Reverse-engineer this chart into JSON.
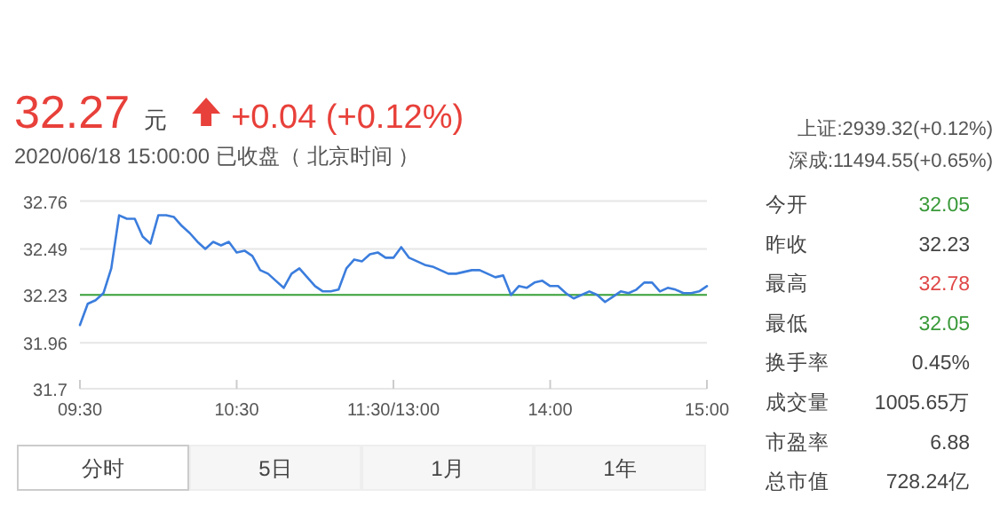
{
  "chart_data": [
    {
      "type": "line",
      "title": "32.27",
      "subtitle": "2020/06/18 15:00:00  已收盘（ 北京时间 ）",
      "annotations": [
        "元",
        "+0.04 (+0.12%)"
      ],
      "categories": [
        "09:30",
        null,
        null,
        null,
        null,
        null,
        null,
        null,
        null,
        null,
        null,
        null,
        null,
        null,
        null,
        null,
        null,
        null,
        null,
        null,
        "10:30",
        null,
        null,
        null,
        null,
        null,
        null,
        null,
        null,
        null,
        null,
        null,
        null,
        null,
        null,
        null,
        null,
        null,
        null,
        null,
        "11:30/13:00",
        null,
        null,
        null,
        null,
        null,
        null,
        null,
        null,
        null,
        null,
        null,
        null,
        null,
        null,
        null,
        null,
        null,
        null,
        null,
        "14:00",
        null,
        null,
        null,
        null,
        null,
        null,
        null,
        null,
        null,
        null,
        null,
        null,
        null,
        null,
        null,
        null,
        null,
        null,
        null,
        "15:00"
      ],
      "series": [
        {
          "color": "#3b7ddd",
          "values": [
            32.06,
            32.18,
            32.2,
            32.24,
            32.38,
            32.68,
            32.66,
            32.66,
            32.56,
            32.52,
            32.68,
            32.68,
            32.67,
            32.62,
            32.58,
            32.53,
            32.49,
            32.53,
            32.51,
            32.53,
            32.47,
            32.48,
            32.45,
            32.37,
            32.35,
            32.31,
            32.27,
            32.35,
            32.38,
            32.33,
            32.28,
            32.25,
            32.25,
            32.26,
            32.38,
            32.43,
            32.42,
            32.46,
            32.47,
            32.44,
            32.44,
            32.5,
            32.44,
            32.42,
            32.4,
            32.39,
            32.37,
            32.35,
            32.35,
            32.36,
            32.37,
            32.37,
            32.35,
            32.33,
            32.34,
            32.23,
            32.28,
            32.27,
            32.3,
            32.31,
            32.28,
            32.28,
            32.24,
            32.21,
            32.23,
            32.25,
            32.23,
            32.19,
            32.22,
            32.25,
            32.24,
            32.26,
            32.3,
            32.3,
            32.25,
            32.27,
            32.26,
            32.24,
            32.24,
            32.25,
            32.28
          ]
        }
      ],
      "ylim": [
        31.7,
        32.76
      ],
      "yticks": [
        31.7,
        31.96,
        32.23,
        32.49,
        32.76
      ],
      "grid": "y",
      "line_style": "solid",
      "marker": "none",
      "ref_lines": [
        {
          "axis": "y",
          "value": 32.23,
          "color": "#3aa33a"
        }
      ]
    },
    {
      "type": "other",
      "annotations": [
        "上证:2939.32(+0.12%)",
        "深成:11494.55(+0.65%)",
        "今开",
        "32.05",
        "昨收",
        "32.23",
        "最高",
        "32.78",
        "最低",
        "32.05",
        "换手率",
        "0.45%",
        "成交量",
        "1005.65万",
        "市盈率",
        "6.88",
        "总市值",
        "728.24亿"
      ],
      "colors": [
        "#555555",
        "#555555",
        "#444444",
        "#3a9a3a",
        "#444444",
        "#444444",
        "#444444",
        "#e04848",
        "#444444",
        "#3a9a3a",
        "#444444",
        "#444444",
        "#444444",
        "#444444",
        "#444444",
        "#444444",
        "#444444",
        "#444444"
      ]
    },
    {
      "type": "other",
      "annotations": [
        "分时",
        "5日",
        "1月",
        "1年"
      ]
    }
  ]
}
